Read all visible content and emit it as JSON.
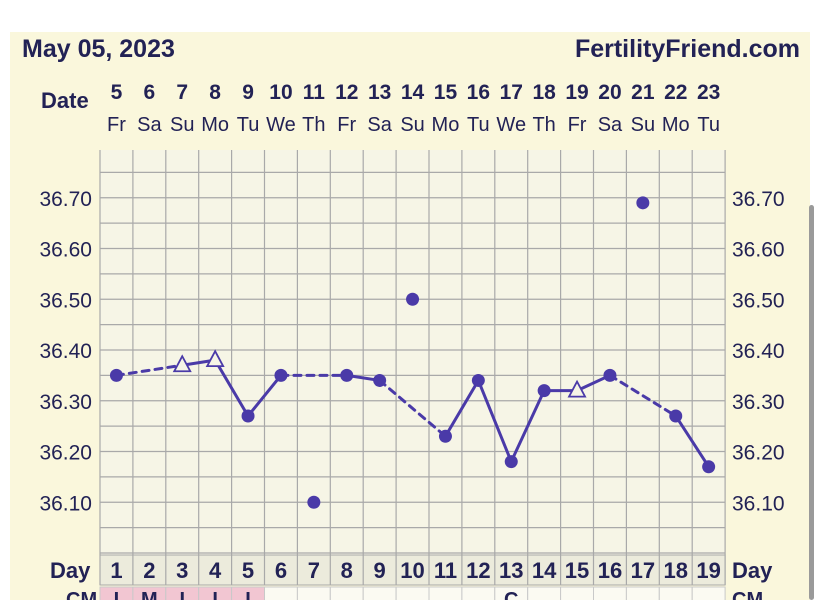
{
  "header": {
    "date": "May 05, 2023",
    "brand": "FertilityFriend.com"
  },
  "labels": {
    "date_row": "Date",
    "day_row": "Day",
    "cm_row": "CM"
  },
  "colors": {
    "panel_bg": "#faf7dc",
    "plot_bg": "#f6f5e6",
    "grid": "#a9a9a9",
    "line": "#4a3aa8",
    "text": "#222255",
    "cm_pink": "#f2c6d2"
  },
  "chart_data": {
    "type": "line",
    "ylim": [
      36.0,
      36.8
    ],
    "y_ticks": [
      "36.10",
      "36.20",
      "36.30",
      "36.40",
      "36.50",
      "36.60",
      "36.70"
    ],
    "y_tick_values": [
      36.1,
      36.2,
      36.3,
      36.4,
      36.5,
      36.6,
      36.7
    ],
    "dates": [
      "5",
      "6",
      "7",
      "8",
      "9",
      "10",
      "11",
      "12",
      "13",
      "14",
      "15",
      "16",
      "17",
      "18",
      "19",
      "20",
      "21",
      "22",
      "23"
    ],
    "weekdays": [
      "Fr",
      "Sa",
      "Su",
      "Mo",
      "Tu",
      "We",
      "Th",
      "Fr",
      "Sa",
      "Su",
      "Mo",
      "Tu",
      "We",
      "Th",
      "Fr",
      "Sa",
      "Su",
      "Mo",
      "Tu"
    ],
    "cycle_days": [
      "1",
      "2",
      "3",
      "4",
      "5",
      "6",
      "7",
      "8",
      "9",
      "10",
      "11",
      "12",
      "13",
      "14",
      "15",
      "16",
      "17",
      "18",
      "19"
    ],
    "cm_marks": [
      "I",
      "M",
      "I",
      "I",
      "I",
      "",
      "",
      "",
      "",
      "",
      "",
      "",
      "C",
      "",
      "",
      "",
      "",
      "",
      ""
    ],
    "temperatures": [
      36.35,
      null,
      36.37,
      36.38,
      36.27,
      36.35,
      36.1,
      36.35,
      36.34,
      36.5,
      36.23,
      36.34,
      36.18,
      36.32,
      36.32,
      36.35,
      36.69,
      36.27,
      36.17
    ],
    "markers": [
      "dot",
      "",
      "triangle",
      "triangle",
      "dot",
      "dot",
      "dot",
      "dot",
      "dot",
      "dot",
      "dot",
      "dot",
      "dot",
      "dot",
      "triangle",
      "dot",
      "dot",
      "dot",
      "dot"
    ],
    "segments": [
      [
        1,
        3,
        "dashed"
      ],
      [
        3,
        4,
        "solid"
      ],
      [
        4,
        5,
        "solid"
      ],
      [
        5,
        6,
        "solid"
      ],
      [
        6,
        8,
        "dashed"
      ],
      [
        8,
        9,
        "solid"
      ],
      [
        9,
        11,
        "dashed"
      ],
      [
        11,
        12,
        "solid"
      ],
      [
        12,
        13,
        "solid"
      ],
      [
        13,
        14,
        "solid"
      ],
      [
        14,
        15,
        "solid"
      ],
      [
        15,
        16,
        "solid"
      ],
      [
        16,
        18,
        "dashed"
      ],
      [
        18,
        19,
        "solid"
      ]
    ]
  }
}
